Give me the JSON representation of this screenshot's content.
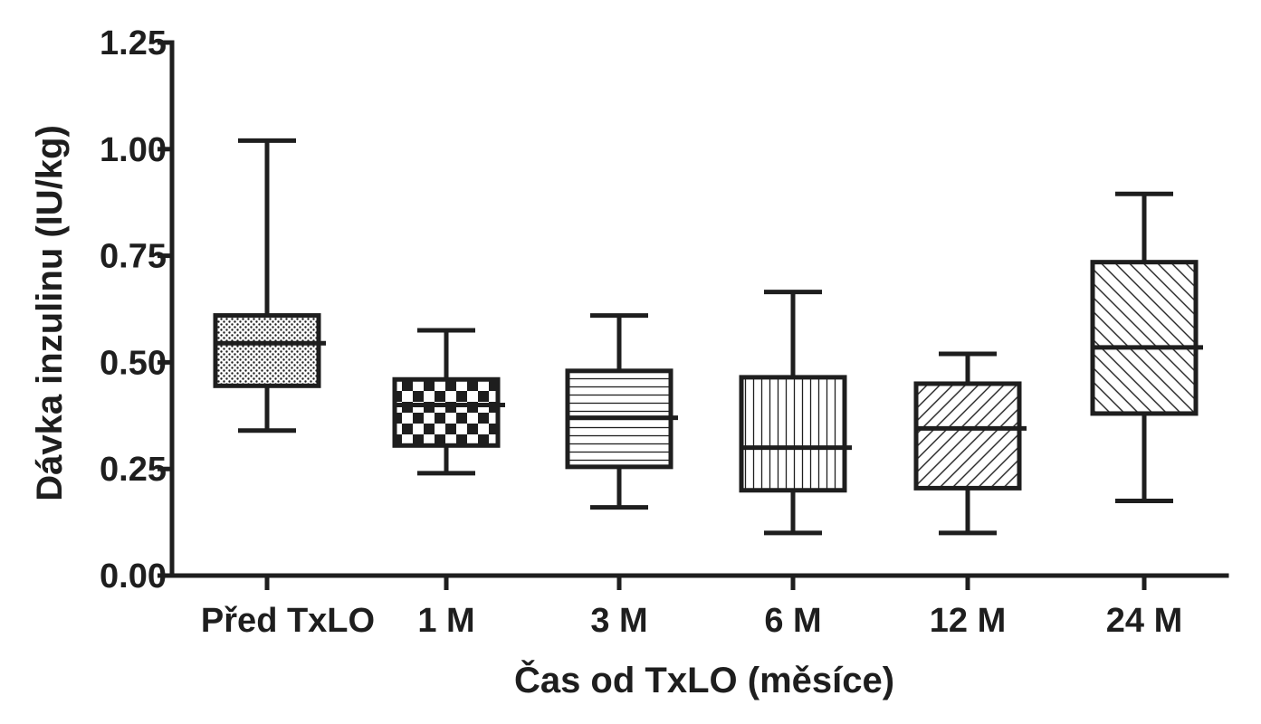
{
  "chart_data": {
    "type": "box",
    "title": "",
    "xlabel": "Čas od TxLO (měsíce)",
    "ylabel": "Dávka inzulinu (IU/kg)",
    "ylim": [
      0,
      1.25
    ],
    "yticks": [
      0.0,
      0.25,
      0.5,
      0.75,
      1.0,
      1.25
    ],
    "ytick_labels": [
      "0.00",
      "0.25",
      "0.50",
      "0.75",
      "1.00",
      "1.25"
    ],
    "grid": false,
    "legend": "none",
    "categories": [
      "Před TxLO",
      "1 M",
      "3 M",
      "6 M",
      "12 M",
      "24 M"
    ],
    "boxes": [
      {
        "category": "Před TxLO",
        "min": 0.34,
        "q1": 0.445,
        "median": 0.545,
        "q3": 0.61,
        "max": 1.02,
        "pattern": "dots"
      },
      {
        "category": "1 M",
        "min": 0.24,
        "q1": 0.305,
        "median": 0.4,
        "q3": 0.46,
        "max": 0.575,
        "pattern": "checker"
      },
      {
        "category": "3 M",
        "min": 0.16,
        "q1": 0.255,
        "median": 0.37,
        "q3": 0.48,
        "max": 0.61,
        "pattern": "horizontal"
      },
      {
        "category": "6 M",
        "min": 0.1,
        "q1": 0.2,
        "median": 0.3,
        "q3": 0.465,
        "max": 0.665,
        "pattern": "vertical"
      },
      {
        "category": "12 M",
        "min": 0.1,
        "q1": 0.205,
        "median": 0.345,
        "q3": 0.45,
        "max": 0.52,
        "pattern": "diagonal-up"
      },
      {
        "category": "24 M",
        "min": 0.175,
        "q1": 0.38,
        "median": 0.535,
        "q3": 0.735,
        "max": 0.895,
        "pattern": "diagonal-down"
      }
    ],
    "colors": {
      "ink": "#1e1e1e",
      "background": "#ffffff"
    }
  }
}
